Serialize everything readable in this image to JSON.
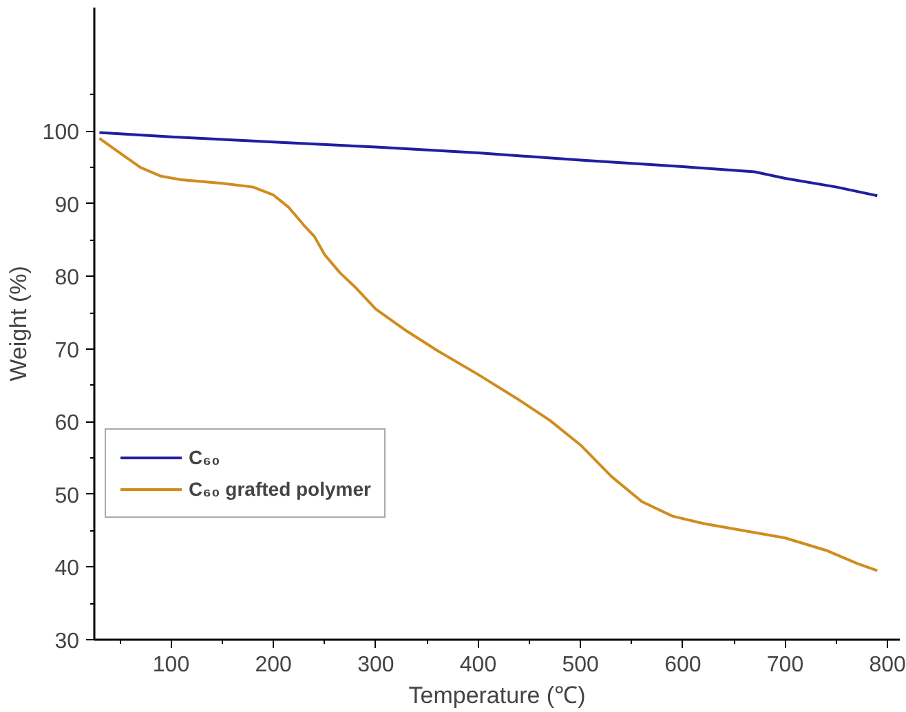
{
  "chart_data": {
    "type": "line",
    "xlabel": "Temperature (℃)",
    "ylabel": "Weight (%)",
    "xlim": [
      25,
      812
    ],
    "ylim": [
      30,
      117
    ],
    "xticks": [
      100,
      200,
      300,
      400,
      500,
      600,
      700,
      800
    ],
    "yticks": [
      30,
      40,
      50,
      60,
      70,
      80,
      90,
      100
    ],
    "grid": false,
    "legend": "bottom left",
    "line_style": "solid",
    "marker": "none",
    "series": [
      {
        "name": "C₆₀",
        "color": "#1f1fa0",
        "x": [
          30,
          100,
          200,
          300,
          400,
          500,
          600,
          670,
          700,
          750,
          790
        ],
        "values": [
          99.8,
          99.2,
          98.5,
          97.8,
          97,
          96,
          95.1,
          94.4,
          93.5,
          92.3,
          91.1
        ]
      },
      {
        "name": "C₆₀ grafted polymer",
        "color": "#d08c1e",
        "x": [
          30,
          50,
          70,
          90,
          110,
          150,
          180,
          200,
          215,
          230,
          240,
          250,
          265,
          280,
          300,
          330,
          360,
          400,
          440,
          470,
          500,
          530,
          560,
          590,
          620,
          660,
          700,
          740,
          770,
          790
        ],
        "values": [
          99,
          97,
          95,
          93.8,
          93.3,
          92.8,
          92.3,
          91.2,
          89.5,
          87,
          85.5,
          83,
          80.5,
          78.5,
          75.5,
          72.5,
          69.8,
          66.5,
          63,
          60.2,
          56.8,
          52.5,
          49,
          47,
          46,
          45,
          44,
          42.3,
          40.5,
          39.5
        ]
      }
    ]
  }
}
